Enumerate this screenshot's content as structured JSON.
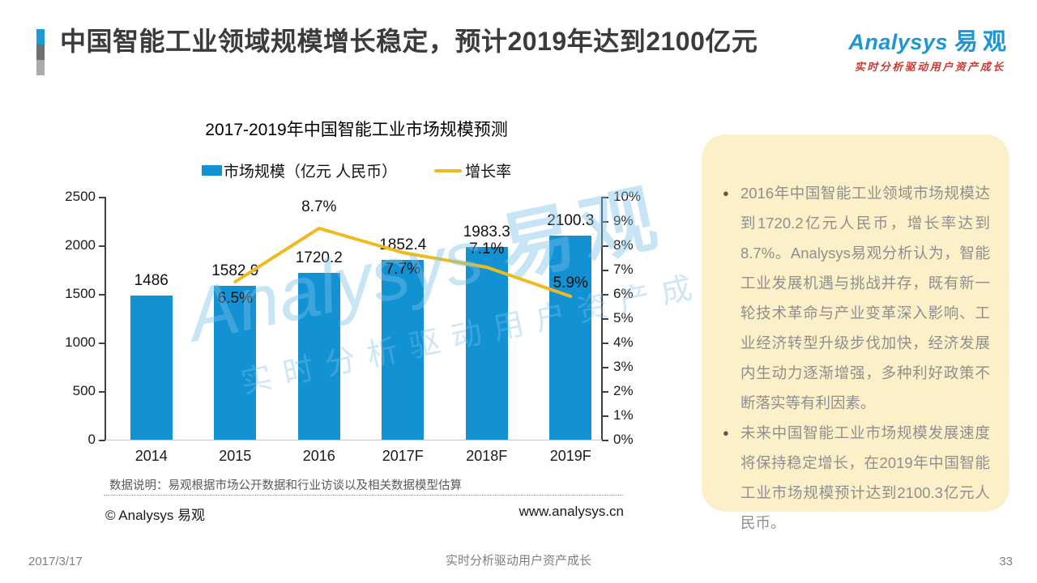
{
  "slide": {
    "title": "中国智能工业领域规模增长稳定，预计2019年达到2100亿元",
    "logo": {
      "brand": "Analysys",
      "brand_cn": "易观",
      "tagline": "实时分析驱动用户资产成长"
    },
    "footer": {
      "date": "2017/3/17",
      "slogan": "实时分析驱动用户资产成长",
      "page": "33"
    }
  },
  "chart": {
    "title": "2017-2019年中国智能工业市场规模预测",
    "legend": [
      {
        "label": "市场规模（亿元 人民币）",
        "swatch": "bar-swatch-icon"
      },
      {
        "label": "增长率",
        "swatch": "line-swatch-icon"
      }
    ],
    "note": "数据说明：易观根据市场公开数据和行业访谈以及相关数据模型估算",
    "copyright": "© Analysys 易观",
    "website": "www.analysys.cn",
    "watermark": {
      "brand": "Analysys",
      "brand_cn": "易观",
      "tagline": "实时分析驱动用户资产成长"
    }
  },
  "chart_data": {
    "type": "bar",
    "title": "2017-2019年中国智能工业市场规模预测",
    "categories": [
      "2014",
      "2015",
      "2016",
      "2017F",
      "2018F",
      "2019F"
    ],
    "series": [
      {
        "name": "市场规模（亿元 人民币）",
        "type": "bar",
        "values": [
          1486,
          1582.9,
          1720.2,
          1852.4,
          1983.3,
          2100.3
        ],
        "labels": [
          "1486",
          "1582.9",
          "1720.2",
          "1852.4",
          "1983.3",
          "2100.3"
        ],
        "color": "#1291d3"
      },
      {
        "name": "增长率",
        "type": "line",
        "unit": "%",
        "values": [
          null,
          6.5,
          8.7,
          7.7,
          7.1,
          5.9
        ],
        "labels": [
          null,
          "6.5%",
          "8.7%",
          "7.7%",
          "7.1%",
          "5.9%"
        ],
        "color": "#f0ba1c"
      }
    ],
    "left_axis": {
      "min": 0,
      "max": 2500,
      "step": 500,
      "ticks": [
        "0",
        "500",
        "1000",
        "1500",
        "2000",
        "2500"
      ]
    },
    "right_axis": {
      "min": 0,
      "max": 10,
      "step": 1,
      "ticks": [
        "0%",
        "1%",
        "2%",
        "3%",
        "4%",
        "5%",
        "6%",
        "7%",
        "8%",
        "9%",
        "10%"
      ]
    },
    "grid": false,
    "legend_position": "top"
  },
  "sidebar": {
    "bullets": [
      "2016年中国智能工业领域市场规模达到1720.2亿元人民币，增长率达到8.7%。Analysys易观分析认为，智能工业发展机遇与挑战并存，既有新一轮技术革命与产业变革深入影响、工业经济转型升级步伐加快，经济发展内生动力逐渐增强，多种利好政策不断落实等有利因素。",
      "未来中国智能工业市场规模发展速度将保持稳定增长，在2019年中国智能工业市场规模预计达到2100.3亿元人民币。"
    ]
  }
}
